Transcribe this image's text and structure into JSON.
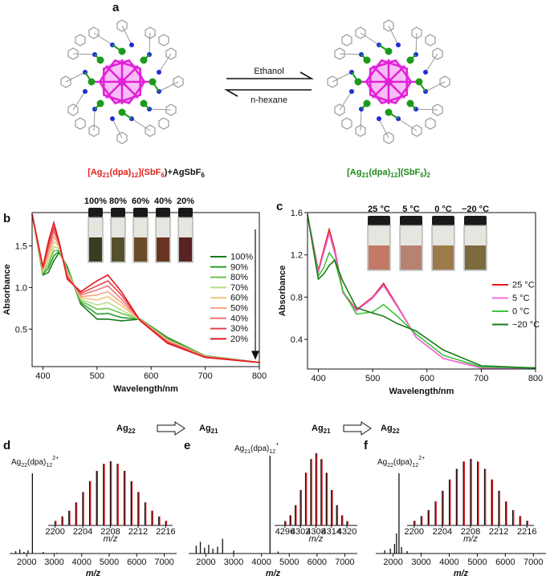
{
  "panel_labels": [
    "a",
    "b",
    "c",
    "d",
    "e",
    "f"
  ],
  "scheme": {
    "forward": "Ethanol",
    "backward": "n-hexane",
    "left_formula": [
      "[Ag",
      "21",
      "(dpa)",
      "12",
      "](SbF",
      "6",
      ")+AgSbF",
      "6"
    ],
    "right_formula": [
      "[Ag",
      "21",
      "(dpa)",
      "12",
      "](SbF",
      "6",
      ")",
      "2"
    ]
  },
  "transitions": [
    {
      "from": [
        "Ag",
        "22"
      ],
      "to": [
        "Ag",
        "21"
      ]
    },
    {
      "from": [
        "Ag",
        "21"
      ],
      "to": [
        "Ag",
        "22"
      ]
    }
  ],
  "chart_data": [
    {
      "type": "line",
      "xlabel": "Wavelength/nm",
      "ylabel": "Absorbance",
      "xlim": [
        380,
        800
      ],
      "ylim": [
        0.05,
        1.9
      ],
      "xticks": [
        400,
        500,
        600,
        700,
        800
      ],
      "yticks": [
        0.5,
        {
          "value": 1,
          "label": "1.0"
        },
        1.5
      ],
      "x": [
        380,
        400,
        410,
        420,
        430,
        445,
        470,
        500,
        520,
        545,
        580,
        630,
        700,
        800
      ],
      "vials": [
        "100%",
        "80%",
        "60%",
        "40%",
        "20%"
      ],
      "series": [
        {
          "name": "100%",
          "color": "#1b7a1b",
          "values": [
            1.88,
            1.15,
            1.18,
            1.32,
            1.42,
            1.25,
            0.8,
            0.62,
            0.62,
            0.6,
            0.62,
            0.4,
            0.18,
            0.1
          ]
        },
        {
          "name": "90%",
          "color": "#2ca02c",
          "values": [
            1.88,
            1.16,
            1.23,
            1.38,
            1.44,
            1.23,
            0.82,
            0.68,
            0.69,
            0.64,
            0.62,
            0.39,
            0.18,
            0.1
          ]
        },
        {
          "name": "80%",
          "color": "#6cc24a",
          "values": [
            1.88,
            1.18,
            1.27,
            1.44,
            1.45,
            1.21,
            0.84,
            0.74,
            0.75,
            0.69,
            0.62,
            0.38,
            0.18,
            0.1
          ]
        },
        {
          "name": "70%",
          "color": "#b8dc8c",
          "values": [
            1.88,
            1.19,
            1.32,
            1.49,
            1.47,
            1.19,
            0.86,
            0.79,
            0.82,
            0.73,
            0.61,
            0.37,
            0.17,
            0.1
          ]
        },
        {
          "name": "60%",
          "color": "#f3c47c",
          "values": [
            1.88,
            1.2,
            1.37,
            1.55,
            1.49,
            1.18,
            0.88,
            0.85,
            0.89,
            0.78,
            0.61,
            0.37,
            0.17,
            0.1
          ]
        },
        {
          "name": "50%",
          "color": "#f4a582",
          "values": [
            1.88,
            1.21,
            1.41,
            1.61,
            1.5,
            1.16,
            0.89,
            0.91,
            0.95,
            0.82,
            0.61,
            0.36,
            0.17,
            0.1
          ]
        },
        {
          "name": "40%",
          "color": "#ee7676",
          "values": [
            1.88,
            1.23,
            1.46,
            1.67,
            1.52,
            1.14,
            0.91,
            0.97,
            1.02,
            0.86,
            0.61,
            0.35,
            0.17,
            0.1
          ]
        },
        {
          "name": "30%",
          "color": "#e8404a",
          "values": [
            1.88,
            1.24,
            1.5,
            1.72,
            1.53,
            1.12,
            0.93,
            1.02,
            1.08,
            0.91,
            0.6,
            0.34,
            0.16,
            0.1
          ]
        },
        {
          "name": "20%",
          "color": "#e31a1c",
          "values": [
            1.88,
            1.25,
            1.55,
            1.78,
            1.55,
            1.1,
            0.95,
            1.08,
            1.15,
            0.95,
            0.6,
            0.33,
            0.16,
            0.1
          ]
        }
      ]
    },
    {
      "type": "line",
      "xlabel": "Wavelength/nm",
      "ylabel": "Absorbance",
      "xlim": [
        380,
        800
      ],
      "ylim": [
        0.12,
        1.6
      ],
      "xticks": [
        400,
        500,
        600,
        700,
        800
      ],
      "yticks": [
        0.4,
        0.8,
        1.2,
        1.6
      ],
      "x": [
        380,
        400,
        410,
        420,
        430,
        445,
        470,
        500,
        520,
        545,
        580,
        630,
        700,
        800
      ],
      "vials": [
        "25 °C",
        "5 °C",
        "0 °C",
        "−20 °C"
      ],
      "series": [
        {
          "name": "25 °C",
          "color": "#e31a1c",
          "values": [
            1.58,
            1.05,
            1.25,
            1.44,
            1.25,
            0.85,
            0.68,
            0.8,
            0.93,
            0.72,
            0.42,
            0.22,
            0.13,
            0.13
          ]
        },
        {
          "name": "5 °C",
          "color": "#f06ee0",
          "values": [
            1.58,
            1.03,
            1.22,
            1.4,
            1.22,
            0.84,
            0.67,
            0.79,
            0.91,
            0.71,
            0.42,
            0.22,
            0.13,
            0.13
          ]
        },
        {
          "name": "0 °C",
          "color": "#3cc43c",
          "values": [
            1.58,
            1.0,
            1.08,
            1.22,
            1.15,
            0.86,
            0.64,
            0.66,
            0.73,
            0.62,
            0.45,
            0.25,
            0.14,
            0.13
          ]
        },
        {
          "name": "−20 °C",
          "color": "#1b7a1b",
          "values": [
            1.58,
            0.97,
            1.02,
            1.1,
            1.15,
            0.95,
            0.7,
            0.65,
            0.62,
            0.55,
            0.48,
            0.3,
            0.15,
            0.13
          ]
        }
      ]
    },
    {
      "type": "spectrum",
      "xlabel": "m/z",
      "xlim": [
        1380,
        7450
      ],
      "xticks": [
        2000,
        3000,
        4000,
        5000,
        6000,
        7000
      ],
      "peak_label": [
        "Ag",
        "22",
        "(dpa)",
        "12",
        "2+"
      ],
      "x": [
        1600,
        1750,
        1900,
        2050,
        2208,
        2600,
        3100
      ],
      "values": [
        3,
        5,
        2,
        4,
        100,
        2,
        1
      ],
      "inset": {
        "xlabel": "m/z",
        "xlim": [
          2199,
          2217
        ],
        "xticks": [
          2200,
          2204,
          2208,
          2212,
          2216
        ],
        "x": [
          2200,
          2201,
          2202,
          2203,
          2204,
          2205,
          2206,
          2207,
          2208,
          2209,
          2210,
          2211,
          2212,
          2213,
          2214,
          2215,
          2216
        ],
        "values": [
          7,
          14,
          23,
          36,
          52,
          69,
          85,
          96,
          100,
          96,
          85,
          69,
          52,
          36,
          23,
          14,
          7
        ]
      }
    },
    {
      "type": "spectrum",
      "xlabel": "m/z",
      "xlim": [
        1380,
        7450
      ],
      "xticks": [
        2000,
        3000,
        4000,
        5000,
        6000,
        7000
      ],
      "peak_label": [
        "Ag",
        "21",
        "(dpa)",
        "12",
        "+"
      ],
      "x": [
        1650,
        1800,
        1950,
        2100,
        2250,
        2420,
        2600,
        3000,
        4308,
        4600
      ],
      "values": [
        8,
        12,
        6,
        9,
        5,
        7,
        15,
        3,
        100,
        2
      ],
      "inset": {
        "xlabel": "m/z",
        "xlim": [
          4292,
          4324
        ],
        "xticks": [
          4296,
          4302,
          4308,
          4314,
          4320
        ],
        "x": [
          4296,
          4298,
          4300,
          4302,
          4304,
          4306,
          4308,
          4310,
          4312,
          4314,
          4316,
          4318,
          4320
        ],
        "values": [
          6,
          14,
          28,
          49,
          73,
          92,
          100,
          92,
          73,
          49,
          28,
          14,
          6
        ]
      }
    },
    {
      "type": "spectrum",
      "xlabel": "m/z",
      "xlim": [
        1380,
        7450
      ],
      "xticks": [
        2000,
        3000,
        4000,
        5000,
        6000,
        7000
      ],
      "peak_label": [
        "Ag",
        "22",
        "(dpa)",
        "12",
        "2+"
      ],
      "x": [
        1700,
        1900,
        2050,
        2120,
        2208,
        2300,
        2500,
        3000
      ],
      "values": [
        4,
        6,
        12,
        25,
        100,
        8,
        3,
        1
      ],
      "inset": {
        "xlabel": "m/z",
        "xlim": [
          2199,
          2217
        ],
        "xticks": [
          2200,
          2204,
          2208,
          2212,
          2216
        ],
        "x": [
          2200,
          2201,
          2202,
          2203,
          2204,
          2205,
          2206,
          2207,
          2208,
          2209,
          2210,
          2211,
          2212,
          2213,
          2214,
          2215,
          2216
        ],
        "values": [
          7,
          14,
          23,
          36,
          52,
          69,
          85,
          96,
          100,
          96,
          85,
          69,
          52,
          36,
          23,
          14,
          7
        ]
      }
    }
  ]
}
